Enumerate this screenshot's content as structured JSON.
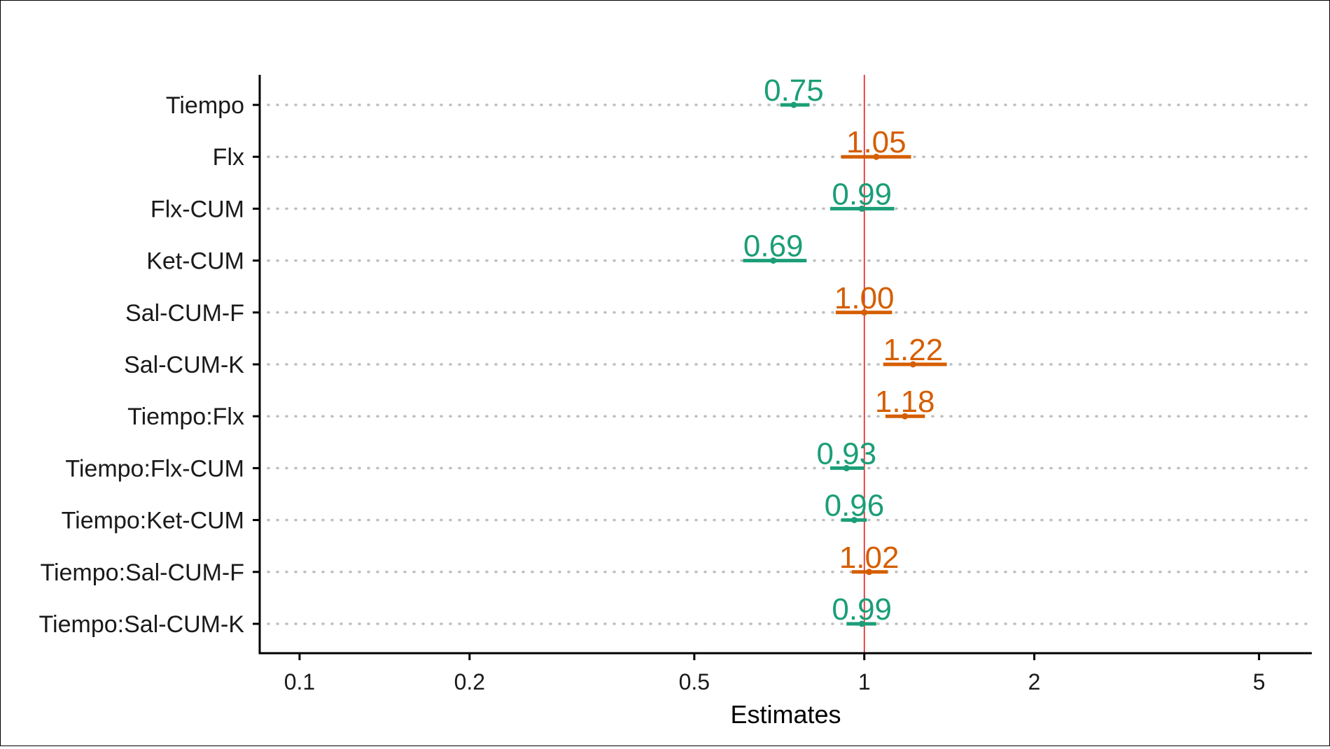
{
  "chart_data": {
    "type": "scatter",
    "subtype": "forest-plot",
    "title": "",
    "xlabel": "Estimates",
    "ylabel": "",
    "x_scale": "log",
    "xlim": [
      0.085,
      6.2
    ],
    "x_ticks": [
      0.1,
      0.2,
      0.5,
      1,
      2,
      5
    ],
    "x_tick_labels": [
      "0.1",
      "0.2",
      "0.5",
      "1",
      "2",
      "5"
    ],
    "reference_line": 1,
    "grid": "horizontal dotted",
    "legend": "none",
    "colors": {
      "above_one": "#D55E00",
      "below_one": "#1B9E77",
      "reference": "#E41A1C",
      "grid": "#BEBEBE"
    },
    "terms": [
      "Tiempo",
      "Flx",
      "Flx-CUM",
      "Ket-CUM",
      "Sal-CUM-F",
      "Sal-CUM-K",
      "Tiempo:Flx",
      "Tiempo:Flx-CUM",
      "Tiempo:Ket-CUM",
      "Tiempo:Sal-CUM-F",
      "Tiempo:Sal-CUM-K"
    ],
    "estimates": [
      0.75,
      1.05,
      0.99,
      0.69,
      1.0,
      1.22,
      1.18,
      0.93,
      0.96,
      1.02,
      0.99
    ],
    "labels": [
      "0.75",
      "1.05",
      "0.99",
      "0.69",
      "1.00",
      "1.22",
      "1.18",
      "0.93",
      "0.96",
      "1.02",
      "0.99"
    ],
    "ci_low": [
      0.71,
      0.91,
      0.87,
      0.61,
      0.89,
      1.08,
      1.09,
      0.87,
      0.91,
      0.95,
      0.93
    ],
    "ci_high": [
      0.8,
      1.21,
      1.13,
      0.79,
      1.12,
      1.4,
      1.28,
      1.0,
      1.01,
      1.1,
      1.05
    ]
  }
}
